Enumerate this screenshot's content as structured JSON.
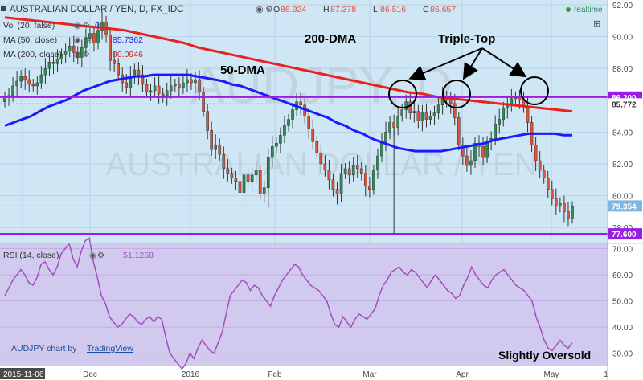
{
  "header": {
    "symbol_line": "AUSTRALIAN DOLLAR / YEN, D, FX_IDC",
    "ohlc": [
      {
        "k": "O",
        "v": "86.924"
      },
      {
        "k": "H",
        "v": "87.378"
      },
      {
        "k": "L",
        "v": "86.516"
      },
      {
        "k": "C",
        "v": "86.657"
      }
    ],
    "realtime": "realtime",
    "indicators": [
      {
        "label": "Vol (20, false)",
        "value": "0",
        "color": "#3333cc"
      },
      {
        "label": "MA (50, close)",
        "value": "85.7362",
        "color": "#2222dd"
      },
      {
        "label": "MA (200, close)",
        "value": "90.0946",
        "color": "#dd2222"
      }
    ]
  },
  "watermark": {
    "big": "AUDJPY, D",
    "small": "AUSTRALIAN DOLLAR / YEN"
  },
  "annotations": {
    "dma200": "200-DMA",
    "dma50": "50-DMA",
    "triple_top": "Triple-Top",
    "oversold": "Slightly Oversold"
  },
  "price_labels": {
    "resistance": "86.200",
    "current": "85.772",
    "last": "79.354",
    "support": "77.600"
  },
  "rsi_label": {
    "name": "RSI (14, close)",
    "value": "51.1258"
  },
  "footer": {
    "brand_prefix": "AUDJPY chart by",
    "brand_link": "TradingView"
  },
  "colors": {
    "bg": "#cfe6f5",
    "rsi_bg": "#d2c9ef",
    "up": "#2e8b57",
    "down": "#e0533a",
    "ma50": "#1a1aff",
    "ma200": "#e8231f",
    "level": "#9a1de3",
    "rsi": "#a24ebd"
  },
  "chart_data": [
    {
      "type": "candlestick",
      "title": "AUSTRALIAN DOLLAR / YEN, D, FX_IDC",
      "x_ticks": [
        "2015-11-06",
        "Dec",
        "2016",
        "Feb",
        "Mar",
        "Apr",
        "May",
        "1"
      ],
      "y_ticks": [
        78.0,
        80.0,
        82.0,
        84.0,
        86.0,
        88.0,
        90.0,
        92.0
      ],
      "ylim": [
        77.0,
        92.3
      ],
      "horizontal_lines": [
        86.2,
        77.6
      ],
      "close": [
        86.2,
        86.3,
        86.9,
        87.2,
        87.5,
        87.3,
        87.0,
        86.9,
        87.1,
        87.6,
        88.0,
        88.4,
        88.3,
        88.6,
        88.9,
        89.1,
        89.4,
        89.0,
        88.7,
        89.3,
        89.9,
        90.2,
        89.6,
        90.4,
        90.9,
        90.1,
        88.5,
        88.3,
        87.6,
        87.1,
        86.8,
        87.5,
        87.9,
        87.6,
        87.0,
        86.5,
        86.6,
        86.9,
        86.4,
        86.3,
        86.6,
        86.9,
        87.0,
        86.8,
        87.1,
        87.3,
        87.1,
        87.3,
        86.5,
        85.3,
        84.1,
        82.9,
        83.2,
        82.6,
        81.7,
        81.4,
        81.1,
        80.9,
        80.2,
        81.3,
        80.9,
        81.3,
        81.6,
        80.1,
        80.5,
        82.4,
        83.1,
        83.3,
        83.8,
        84.4,
        84.8,
        85.4,
        85.9,
        85.7,
        85.0,
        84.2,
        83.4,
        82.7,
        82.0,
        81.6,
        81.0,
        80.4,
        80.1,
        81.4,
        81.7,
        81.3,
        81.9,
        81.7,
        81.4,
        80.6,
        80.4,
        81.6,
        82.5,
        83.4,
        84.0,
        84.6,
        84.3,
        85.0,
        85.4,
        85.9,
        85.2,
        85.3,
        84.7,
        85.2,
        84.8,
        85.0,
        85.2,
        85.7,
        86.2,
        86.0,
        85.8,
        84.9,
        83.2,
        82.5,
        81.9,
        82.2,
        83.3,
        83.1,
        82.4,
        83.4,
        83.6,
        84.5,
        84.8,
        85.5,
        85.8,
        86.1,
        86.2,
        86.0,
        85.6,
        84.6,
        83.2,
        82.2,
        81.6,
        81.1,
        80.4,
        79.8,
        79.4,
        79.5,
        79.0,
        78.6,
        79.3
      ],
      "series": [
        {
          "name": "MA (50, close)",
          "values": [
            84.4,
            84.6,
            84.8,
            85.0,
            85.3,
            85.6,
            85.8,
            86.0,
            86.3,
            86.6,
            86.8,
            87.0,
            87.2,
            87.3,
            87.4,
            87.5,
            87.5,
            87.6,
            87.6,
            87.6,
            87.6,
            87.6,
            87.5,
            87.4,
            87.3,
            87.2,
            87.0,
            86.9,
            86.7,
            86.5,
            86.3,
            86.1,
            85.9,
            85.7,
            85.5,
            85.3,
            85.1,
            84.9,
            84.6,
            84.4,
            84.1,
            83.9,
            83.6,
            83.4,
            83.2,
            83.0,
            82.9,
            82.8,
            82.8,
            82.8,
            82.8,
            82.9,
            83.0,
            83.1,
            83.2,
            83.3,
            83.5,
            83.6,
            83.7,
            83.8,
            83.9,
            83.9,
            83.9,
            83.9,
            83.8,
            83.8
          ]
        },
        {
          "name": "MA (200, close)",
          "values": [
            91.2,
            91.1,
            91.0,
            90.9,
            90.8,
            90.7,
            90.6,
            90.5,
            90.4,
            90.2,
            90.0,
            89.8,
            89.6,
            89.3,
            89.1,
            88.9,
            88.7,
            88.5,
            88.3,
            88.1,
            87.9,
            87.7,
            87.5,
            87.3,
            87.1,
            86.9,
            86.7,
            86.5,
            86.4,
            86.2,
            86.1,
            86.0,
            85.9,
            85.8,
            85.7,
            85.6,
            85.5,
            85.4,
            85.3
          ]
        }
      ]
    },
    {
      "type": "line",
      "title": "RSI (14, close)",
      "y_ticks": [
        30.0,
        40.0,
        50.0,
        60.0,
        70.0
      ],
      "ylim": [
        25,
        72
      ],
      "series": [
        {
          "name": "RSI (14, close)",
          "values": [
            52,
            55,
            58,
            60,
            62,
            60,
            57,
            56,
            59,
            64,
            65,
            62,
            60,
            63,
            68,
            70,
            72,
            66,
            63,
            69,
            73,
            74,
            65,
            59,
            52,
            49,
            44,
            42,
            40,
            41,
            43,
            45,
            44,
            42,
            41,
            43,
            44,
            42,
            44,
            43,
            36,
            30,
            28,
            26,
            24,
            26,
            30,
            28,
            32,
            35,
            33,
            31,
            30,
            34,
            38,
            45,
            52,
            54,
            56,
            58,
            57,
            54,
            56,
            55,
            52,
            50,
            48,
            52,
            55,
            58,
            60,
            62,
            64,
            63,
            60,
            58,
            56,
            55,
            54,
            52,
            50,
            45,
            41,
            40,
            44,
            42,
            40,
            43,
            45,
            44,
            43,
            45,
            47,
            52,
            56,
            58,
            61,
            62,
            63,
            61,
            60,
            62,
            61,
            59,
            57,
            55,
            58,
            60,
            58,
            56,
            54,
            53,
            51,
            52,
            56,
            59,
            63,
            60,
            58,
            56,
            55,
            58,
            60,
            61,
            62,
            60,
            58,
            56,
            55,
            54,
            52,
            50,
            44,
            40,
            35,
            32,
            31,
            33,
            35,
            33,
            32,
            34
          ]
        }
      ]
    }
  ]
}
